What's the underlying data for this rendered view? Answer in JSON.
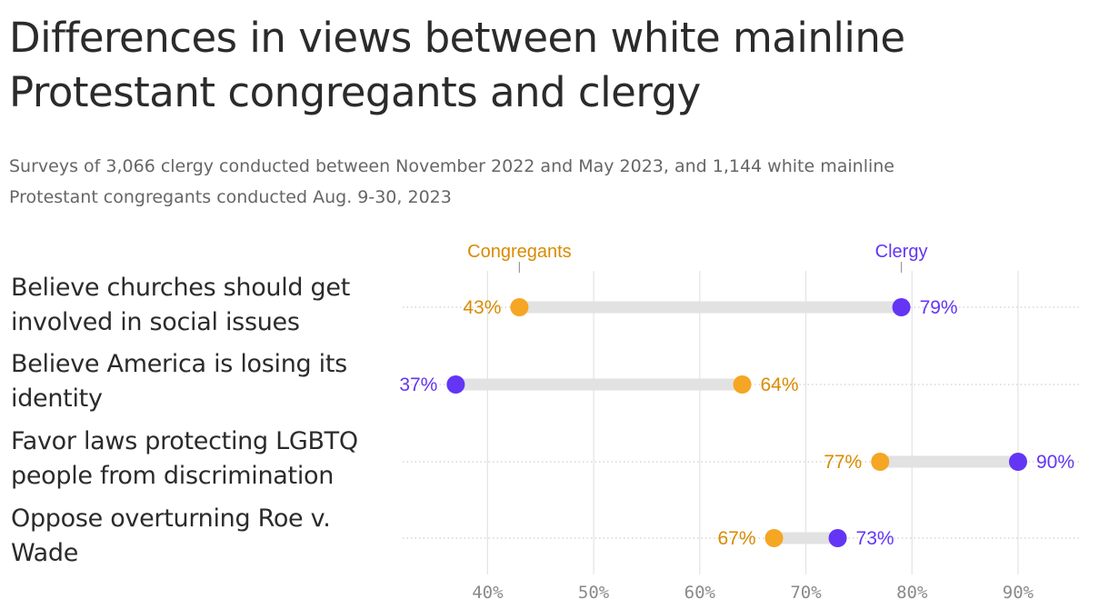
{
  "header": {
    "title_line1": "Differences in views between white mainline",
    "title_line2": "Protestant congregants and clergy",
    "subtitle_line1": "Surveys of 3,066 clergy conducted between November 2022 and May 2023, and 1,144 white mainline",
    "subtitle_line2": "Protestant congregants conducted Aug. 9-30, 2023"
  },
  "rows": [
    {
      "line1": "Believe churches should get",
      "line2": "involved in social issues"
    },
    {
      "line1": "Believe America is losing its",
      "line2": "identity"
    },
    {
      "line1": "Favor laws protecting LGBTQ",
      "line2": "people from discrimination"
    },
    {
      "line1": "Oppose overturning Roe v.",
      "line2": "Wade"
    }
  ],
  "chart_data": {
    "type": "dumbbell",
    "categories": [
      "Believe churches should get involved in social issues",
      "Believe America is losing its identity",
      "Favor laws protecting LGBTQ people from discrimination",
      "Oppose overturning Roe v. Wade"
    ],
    "series": [
      {
        "name": "Congregants",
        "color": "#f5a623",
        "label_color": "#d98b00",
        "values": [
          43,
          64,
          77,
          67
        ]
      },
      {
        "name": "Clergy",
        "color": "#6435f5",
        "label_color": "#6435f5",
        "values": [
          79,
          37,
          90,
          73
        ]
      }
    ],
    "value_labels": {
      "Congregants": [
        "43%",
        "64%",
        "77%",
        "67%"
      ],
      "Clergy": [
        "79%",
        "37%",
        "90%",
        "73%"
      ]
    },
    "x_ticks": [
      40,
      50,
      60,
      70,
      80,
      90
    ],
    "x_tick_labels": [
      "40%",
      "50%",
      "60%",
      "70%",
      "80%",
      "90%"
    ],
    "xlim": [
      32.0,
      96.0
    ],
    "grid": true,
    "legend": "top, labels above first row markers"
  }
}
